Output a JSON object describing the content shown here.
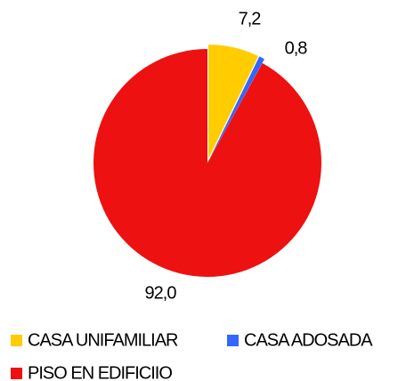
{
  "chart_data": {
    "type": "pie",
    "categories": [
      "CASA UNIFAMILIAR",
      "CASA ADOSADA",
      "PISO EN EDIFICIIO"
    ],
    "values": [
      7.2,
      0.8,
      92.0
    ],
    "value_labels": [
      "7,2",
      "0,8",
      "92,0"
    ],
    "colors": [
      "#FFCC00",
      "#3366FF",
      "#EE1111"
    ],
    "legend": "bottom"
  }
}
